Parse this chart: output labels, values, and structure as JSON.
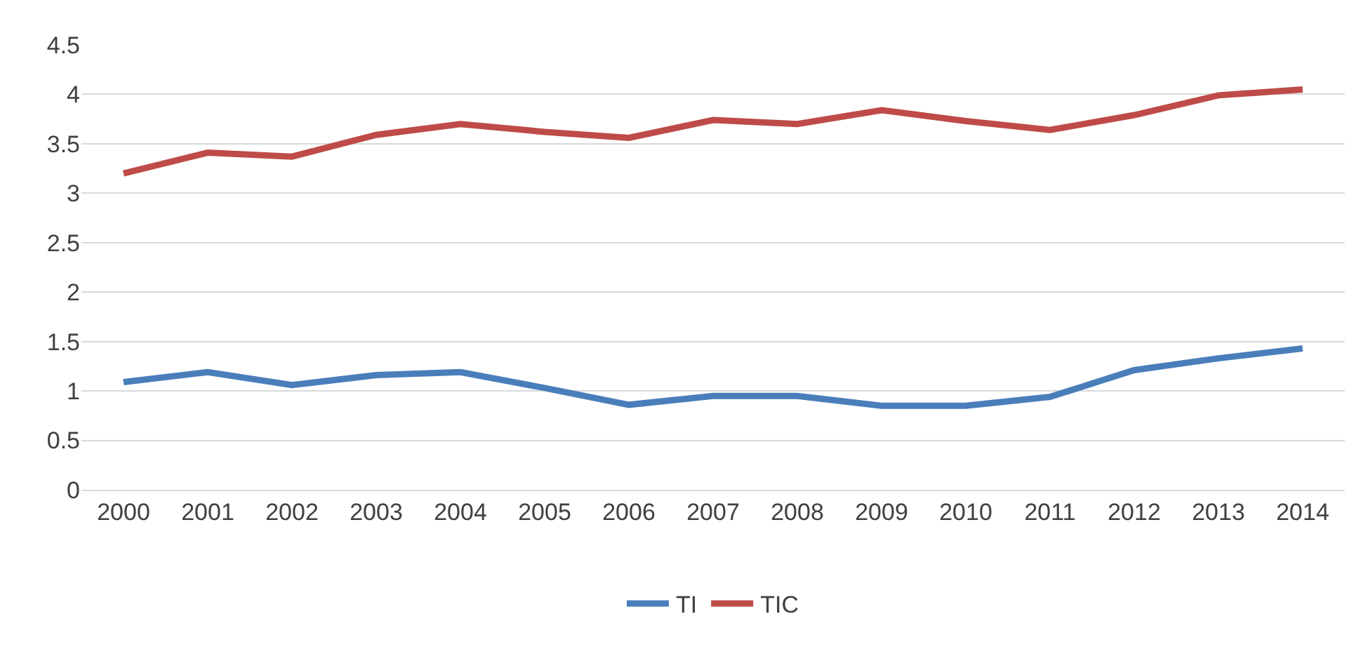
{
  "chart_data": {
    "type": "line",
    "categories": [
      "2000",
      "2001",
      "2002",
      "2003",
      "2004",
      "2005",
      "2006",
      "2007",
      "2008",
      "2009",
      "2010",
      "2011",
      "2012",
      "2013",
      "2014"
    ],
    "series": [
      {
        "name": "TI",
        "color": "#4a7ebb",
        "values": [
          1.09,
          1.19,
          1.06,
          1.16,
          1.19,
          1.03,
          0.86,
          0.95,
          0.95,
          0.85,
          0.85,
          0.94,
          1.21,
          1.33,
          1.43
        ]
      },
      {
        "name": "TIC",
        "color": "#be4b48",
        "values": [
          3.2,
          3.41,
          3.37,
          3.59,
          3.7,
          3.62,
          3.56,
          3.74,
          3.7,
          3.84,
          3.73,
          3.64,
          3.79,
          3.99,
          4.05
        ]
      }
    ],
    "ylim": [
      0,
      4.5
    ],
    "yticks": [
      0,
      0.5,
      1,
      1.5,
      2,
      2.5,
      3,
      3.5,
      4,
      4.5
    ],
    "grid": "y",
    "legend": "bottom",
    "marker": "none",
    "line_style": "solid"
  }
}
